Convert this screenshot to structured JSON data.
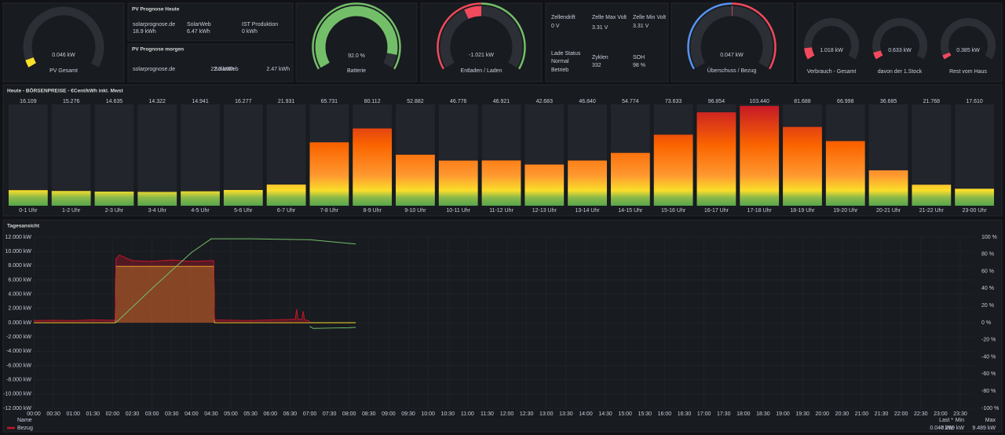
{
  "pv_gesamt": {
    "value": 0.046,
    "value_label": "0.046 kW",
    "label": "PV Gesamt",
    "range": [
      0,
      1
    ],
    "color": "#fade2a"
  },
  "pv_prognose_heute": {
    "title": "PV Prognose Heute",
    "stats": [
      {
        "label": "solarprognose.de",
        "value": 18.9,
        "unit": "kWh"
      },
      {
        "label": "SolarWeb",
        "value": 6.47,
        "unit": "kWh"
      },
      {
        "label": "IST Produktion",
        "value": 0,
        "unit": "kWh"
      }
    ]
  },
  "pv_prognose_morgen": {
    "title": "PV Prognose morgen",
    "stats": [
      {
        "label": "solarprognose.de",
        "value": 22.3,
        "unit": "kWh"
      },
      {
        "label": "SolarWeb",
        "value": 2.47,
        "unit": "kWh"
      }
    ]
  },
  "batterie": {
    "value": 92,
    "value_label": "92.0 %",
    "label": "Batterie",
    "range": [
      0,
      100
    ],
    "color": "#73bf69",
    "band_colors": [
      "#73bf69",
      "#73bf69"
    ]
  },
  "entladen": {
    "value": -1.021,
    "value_label": "-1.021 kW",
    "label": "Entladen / Laden",
    "range": [
      -5,
      5
    ],
    "color": "#f2495c",
    "band_colors": [
      "#f2495c",
      "#73bf69"
    ]
  },
  "zellen": {
    "stats": [
      {
        "label": "Zellendrift",
        "value": 0,
        "unit": "V",
        "color": "#73bf69"
      },
      {
        "label": "Zelle Max Volt",
        "value": 3.31,
        "unit": "V",
        "color": "#73bf69"
      },
      {
        "label": "Zelle Min Volt",
        "value": 3.31,
        "unit": "V",
        "color": "#73bf69"
      },
      {
        "label": "Zyklen",
        "value": 332,
        "color": "#73bf69"
      },
      {
        "label": "SOH",
        "value": 98,
        "unit": "%",
        "color": "#fade2a"
      }
    ],
    "status": {
      "label": "Lade Status",
      "value_lines": [
        "Normal",
        "Betrieb"
      ],
      "color": "#73bf69"
    }
  },
  "ueberschuss": {
    "value": 0.047,
    "value_label": "0.047 kW",
    "label": "Überschuss / Bezug",
    "range": [
      -10,
      10
    ],
    "color": "#f2495c",
    "band_colors": [
      "#5794f2",
      "#f2495c"
    ]
  },
  "verbrauch": [
    {
      "value": 1.018,
      "value_label": "1.018 kW",
      "label": "Verbrauch - Gesamt",
      "range": [
        0,
        10
      ],
      "color": "#f2495c"
    },
    {
      "value": 0.633,
      "value_label": "0.633 kW",
      "label": "davon der 1.Stock",
      "range": [
        0,
        10
      ],
      "color": "#f2495c"
    },
    {
      "value": 0.385,
      "value_label": "0.385 kW",
      "label": "Rest vom Haus",
      "range": [
        0,
        10
      ],
      "color": "#f2495c"
    }
  ],
  "prices": {
    "title": "Heute - BÖRSENPREISE - €Cent/kWh inkl. Mwst",
    "categories": [
      "0-1 Uhr",
      "1-2 Uhr",
      "2-3 Uhr",
      "3-4 Uhr",
      "4-5 Uhr",
      "5-6 Uhr",
      "6-7 Uhr",
      "7-8 Uhr",
      "8-9 Uhr",
      "9-10 Uhr",
      "10-11 Uhr",
      "11-12 Uhr",
      "12-13 Uhr",
      "13-14 Uhr",
      "14-15 Uhr",
      "15-16 Uhr",
      "16-17 Uhr",
      "17-18 Uhr",
      "18-19 Uhr",
      "19-20 Uhr",
      "20-21 Uhr",
      "21-22 Uhr",
      "23-00 Uhr"
    ],
    "values": [
      16.109,
      15.276,
      14.635,
      14.322,
      14.941,
      16.277,
      21.931,
      65.731,
      80.112,
      52.882,
      46.776,
      46.921,
      42.683,
      46.84,
      54.774,
      73.633,
      96.854,
      103.44,
      81.688,
      66.998,
      36.685,
      21.768,
      17.61
    ],
    "value_labels": [
      "16.109",
      "15.276",
      "14.635",
      "14.322",
      "14.941",
      "16.277",
      "21.931",
      "65.731",
      "80.112",
      "52.882",
      "46.776",
      "46.921",
      "42.683",
      "46.840",
      "54.774",
      "73.633",
      "96.854",
      "103.440",
      "81.688",
      "66.998",
      "36.685",
      "21.768",
      "17.610"
    ],
    "ylim": [
      0,
      105
    ],
    "gradient": [
      "#56a64b",
      "#8ab84a",
      "#fade2a",
      "#ff9830",
      "#fa6400",
      "#c4162a"
    ],
    "threshold": 30,
    "label_colors": [
      "#f2b53a",
      "#f2495c"
    ]
  },
  "tagesansicht": {
    "title": "Tagesansicht",
    "ylim": [
      -12000,
      12000
    ],
    "y2lim": [
      -100,
      100
    ],
    "yticks": [
      {
        "value": 12000,
        "label": "12.000 kW"
      },
      {
        "value": 10000,
        "label": "10.000 kW"
      },
      {
        "value": 8000,
        "label": "8.000 kW"
      },
      {
        "value": 6000,
        "label": "6.000 kW"
      },
      {
        "value": 4000,
        "label": "4.000 kW"
      },
      {
        "value": 2000,
        "label": "2.000 kW"
      },
      {
        "value": 0,
        "label": "0.000 kW"
      },
      {
        "value": -2000,
        "label": "-2.000 kW"
      },
      {
        "value": -4000,
        "label": "-4.000 kW"
      },
      {
        "value": -6000,
        "label": "-6.000 kW"
      },
      {
        "value": -8000,
        "label": "-8.000 kW"
      },
      {
        "value": -10000,
        "label": "-10.000 kW"
      },
      {
        "value": -12000,
        "label": "-12.000 kW"
      }
    ],
    "y2ticks": [
      {
        "value": 100,
        "label": "100 %"
      },
      {
        "value": 80,
        "label": "80 %"
      },
      {
        "value": 60,
        "label": "60 %"
      },
      {
        "value": 40,
        "label": "40 %"
      },
      {
        "value": 20,
        "label": "20 %"
      },
      {
        "value": 0,
        "label": "0 %"
      },
      {
        "value": -20,
        "label": "-20 %"
      },
      {
        "value": -40,
        "label": "-40 %"
      },
      {
        "value": -60,
        "label": "-60 %"
      },
      {
        "value": -80,
        "label": "-80 %"
      },
      {
        "value": -100,
        "label": "-100 %"
      }
    ],
    "xticks": [
      "00:00",
      "00:30",
      "01:00",
      "01:30",
      "02:00",
      "02:30",
      "03:00",
      "03:30",
      "04:00",
      "04:30",
      "05:00",
      "05:30",
      "06:00",
      "06:30",
      "07:00",
      "07:30",
      "08:00",
      "08:30",
      "09:00",
      "09:30",
      "10:00",
      "10:30",
      "11:00",
      "11:30",
      "12:00",
      "12:30",
      "13:00",
      "13:30",
      "14:00",
      "14:30",
      "15:00",
      "15:30",
      "16:00",
      "16:30",
      "17:00",
      "17:30",
      "18:00",
      "18:30",
      "19:00",
      "19:30",
      "20:00",
      "20:30",
      "21:00",
      "21:30",
      "22:00",
      "22:30",
      "23:00",
      "23:30"
    ],
    "series": [
      {
        "color": "#fade2a",
        "fill": true,
        "x": [
          "00:00",
          "02:04",
          "02:05",
          "04:34",
          "04:35",
          "08:10"
        ],
        "values": [
          0,
          0,
          7900,
          7900,
          0,
          0
        ]
      },
      {
        "name": "Bezug",
        "color": "#c4162a",
        "fill": true,
        "x": [
          "00:00",
          "00:30",
          "01:00",
          "01:30",
          "02:00",
          "02:04",
          "02:05",
          "02:10",
          "02:30",
          "03:00",
          "03:30",
          "04:00",
          "04:30",
          "04:34",
          "04:35",
          "05:00",
          "05:30",
          "06:00",
          "06:30",
          "06:38",
          "06:40",
          "06:42",
          "06:48",
          "06:50",
          "06:52",
          "07:00"
        ],
        "values": [
          300,
          350,
          300,
          400,
          350,
          350,
          8900,
          9489,
          8700,
          8600,
          8800,
          8600,
          8700,
          8700,
          400,
          350,
          300,
          400,
          450,
          500,
          1900,
          450,
          500,
          1600,
          450,
          200
        ]
      },
      {
        "color": "#73bf69",
        "axis": "y2",
        "x": [
          "02:05",
          "03:00",
          "04:00",
          "04:30",
          "05:30",
          "07:00",
          "08:10"
        ],
        "values": [
          0,
          40,
          82,
          98,
          98,
          97,
          92
        ]
      },
      {
        "color": "#73bf69",
        "x": [
          "07:00",
          "07:05",
          "07:30",
          "08:00",
          "08:10"
        ],
        "values": [
          -500,
          -800,
          -750,
          -700,
          -650
        ]
      }
    ],
    "legend": {
      "headers": [
        "Name",
        "Last *",
        "Min",
        "Max"
      ],
      "row": [
        "Last",
        "Min",
        "Max"
      ],
      "bezug": {
        "name_series": 1,
        "last": "0.047 kW",
        "min": "-0.289 kW",
        "max": "9.489 kW"
      }
    }
  }
}
